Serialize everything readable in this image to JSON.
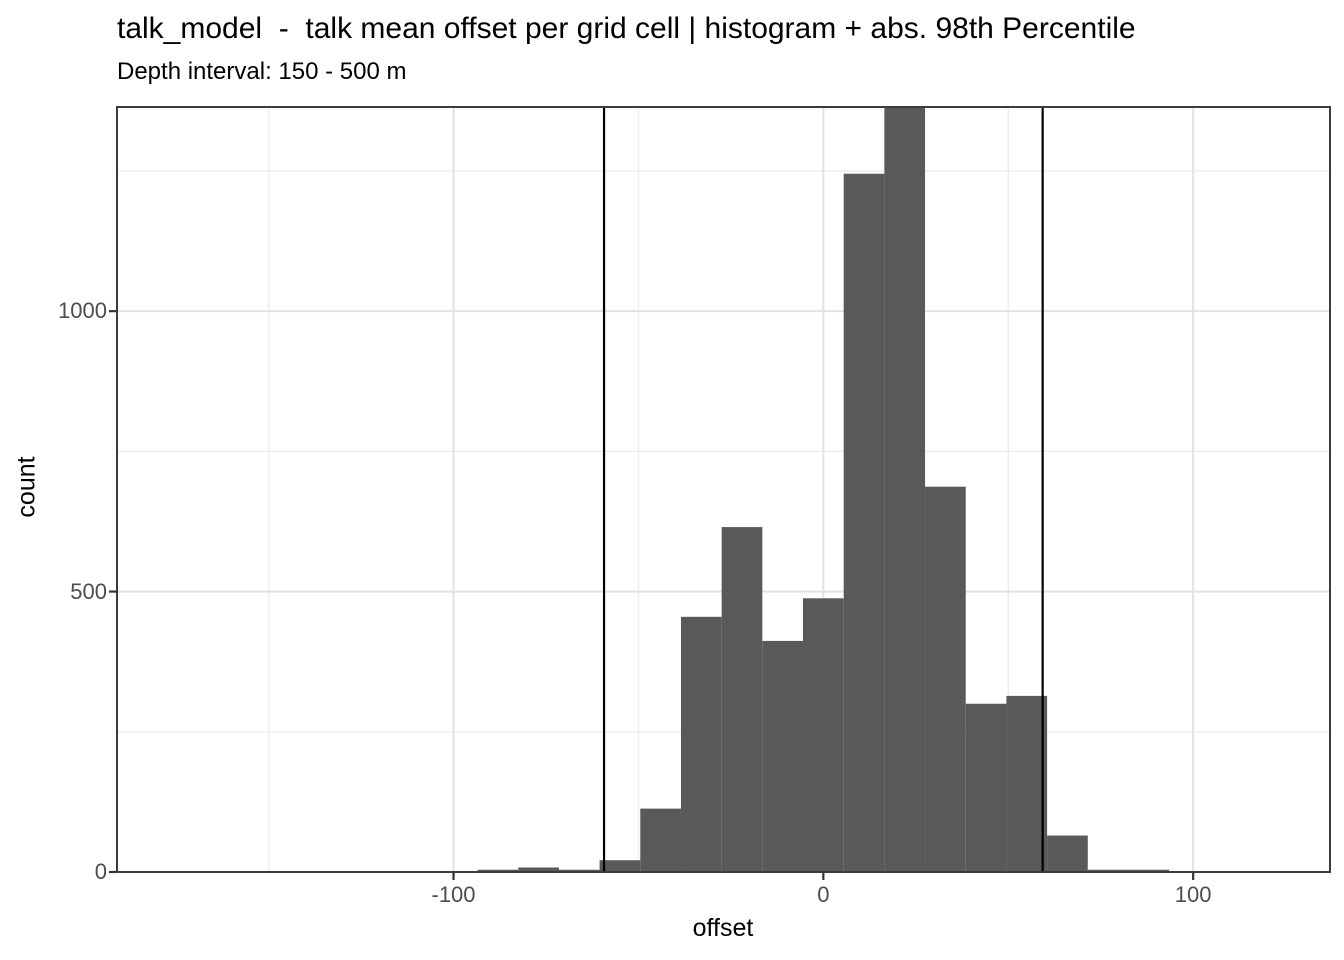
{
  "header": {
    "title": "talk_model  -  talk mean offset per grid cell | histogram + abs. 98th Percentile",
    "subtitle": "Depth interval: 150 - 500 m"
  },
  "chart_data": {
    "type": "bar",
    "variant": "histogram",
    "title": "talk_model  -  talk mean offset per grid cell | histogram + abs. 98th Percentile",
    "subtitle": "Depth interval: 150 - 500 m",
    "xlabel": "offset",
    "ylabel": "count",
    "binwidth": 11,
    "bin_centers": [
      -88,
      -77,
      -66,
      -55,
      -44,
      -33,
      -22,
      -11,
      0,
      11,
      22,
      33,
      44,
      55,
      66,
      77,
      88
    ],
    "counts": [
      4,
      8,
      4,
      21,
      113,
      455,
      615,
      412,
      488,
      1245,
      1366,
      687,
      300,
      314,
      65,
      4,
      4
    ],
    "tallest_bar_clipped_at_panel_top": true,
    "vline_values": [
      -59.3,
      59.3
    ],
    "vline_meaning": "abs. 98th Percentile",
    "x_major_ticks": [
      -100,
      0,
      100
    ],
    "x_minor_gridlines": [
      -150,
      -50,
      50
    ],
    "y_major_ticks": [
      0,
      500,
      1000
    ],
    "y_minor_gridlines": [
      250,
      750,
      1250
    ],
    "xlim": [
      -191,
      137
    ],
    "ylim": [
      0,
      1364
    ],
    "grid": true,
    "legend_position": "none",
    "colors": {
      "bar_fill": "#595959",
      "vline": "#000000",
      "grid_major": "#e2e2e2",
      "grid_minor": "#eeeeee",
      "panel_border": "#3b3b3b",
      "panel_background": "#ffffff",
      "tick_mark": "#333333",
      "tick_label": "#4d4d4d",
      "text": "#000000"
    }
  }
}
